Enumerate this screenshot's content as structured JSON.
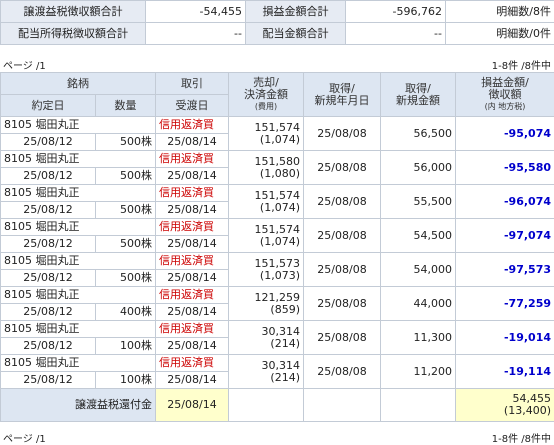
{
  "summary": [
    [
      "譲渡益税徴収額合計",
      "-54,455",
      "損益金額合計",
      "-596,762",
      "明細数/8件"
    ],
    [
      "配当所得税徴収額合計",
      "--",
      "配当金額合計",
      "--",
      "明細数/0件"
    ]
  ],
  "pager_top": {
    "page": "ページ /1",
    "count": "1-8件 /8件中"
  },
  "table": {
    "header": {
      "stock": "銘柄",
      "trade": "取引",
      "amount": [
        "売却/",
        "決済金額",
        "(費用)"
      ],
      "acq_date": [
        "取得/",
        "新規年月日"
      ],
      "acq_amount": [
        "取得/",
        "新規金額"
      ],
      "pl": [
        "損益金額/",
        "徴収額",
        "(内 地方税)"
      ],
      "exec_date": "約定日",
      "qty": "数量",
      "settle_date": "受渡日"
    },
    "rows": [
      {
        "name": "8105 堀田丸正",
        "trade": "信用返済買",
        "amount": "151,574",
        "cost": "(1,074)",
        "acq_date": "25/08/08",
        "acq_amount": "56,500",
        "pl": "-95,074",
        "exec_date": "25/08/12",
        "qty": "500株",
        "settle_date": "25/08/14"
      },
      {
        "name": "8105 堀田丸正",
        "trade": "信用返済買",
        "amount": "151,580",
        "cost": "(1,080)",
        "acq_date": "25/08/08",
        "acq_amount": "56,000",
        "pl": "-95,580",
        "exec_date": "25/08/12",
        "qty": "500株",
        "settle_date": "25/08/14"
      },
      {
        "name": "8105 堀田丸正",
        "trade": "信用返済買",
        "amount": "151,574",
        "cost": "(1,074)",
        "acq_date": "25/08/08",
        "acq_amount": "55,500",
        "pl": "-96,074",
        "exec_date": "25/08/12",
        "qty": "500株",
        "settle_date": "25/08/14"
      },
      {
        "name": "8105 堀田丸正",
        "trade": "信用返済買",
        "amount": "151,574",
        "cost": "(1,074)",
        "acq_date": "25/08/08",
        "acq_amount": "54,500",
        "pl": "-97,074",
        "exec_date": "25/08/12",
        "qty": "500株",
        "settle_date": "25/08/14"
      },
      {
        "name": "8105 堀田丸正",
        "trade": "信用返済買",
        "amount": "151,573",
        "cost": "(1,073)",
        "acq_date": "25/08/08",
        "acq_amount": "54,000",
        "pl": "-97,573",
        "exec_date": "25/08/12",
        "qty": "500株",
        "settle_date": "25/08/14"
      },
      {
        "name": "8105 堀田丸正",
        "trade": "信用返済買",
        "amount": "121,259",
        "cost": "(859)",
        "acq_date": "25/08/08",
        "acq_amount": "44,000",
        "pl": "-77,259",
        "exec_date": "25/08/12",
        "qty": "400株",
        "settle_date": "25/08/14"
      },
      {
        "name": "8105 堀田丸正",
        "trade": "信用返済買",
        "amount": "30,314",
        "cost": "(214)",
        "acq_date": "25/08/08",
        "acq_amount": "11,300",
        "pl": "-19,014",
        "exec_date": "25/08/12",
        "qty": "100株",
        "settle_date": "25/08/14"
      },
      {
        "name": "8105 堀田丸正",
        "trade": "信用返済買",
        "amount": "30,314",
        "cost": "(214)",
        "acq_date": "25/08/08",
        "acq_amount": "11,200",
        "pl": "-19,114",
        "exec_date": "25/08/12",
        "qty": "100株",
        "settle_date": "25/08/14"
      }
    ],
    "footer": {
      "label": "譲渡益税還付金",
      "date": "25/08/14",
      "amount": "54,455",
      "local_tax": "(13,400)"
    }
  },
  "pager_bottom": {
    "page": "ページ /1",
    "count": "1-8件 /8件中"
  }
}
